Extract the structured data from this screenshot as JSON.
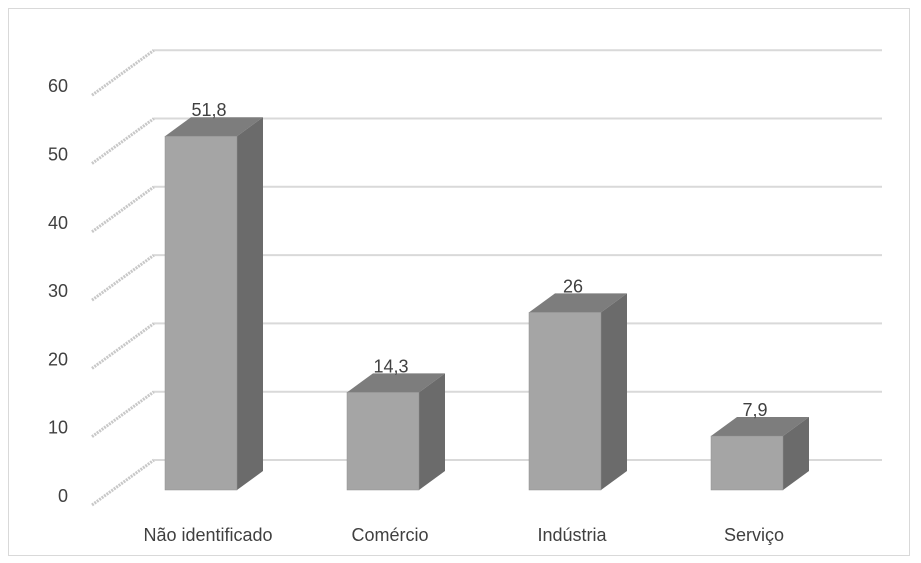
{
  "chart_data": {
    "type": "bar",
    "title": "",
    "xlabel": "",
    "ylabel": "",
    "categories": [
      "Não identificado",
      "Comércio",
      "Indústria",
      "Serviço"
    ],
    "values": [
      51.8,
      14.3,
      26,
      7.9
    ],
    "data_labels": [
      "51,8",
      "14,3",
      "26",
      "7,9"
    ],
    "y_ticks": [
      "0",
      "10",
      "20",
      "30",
      "40",
      "50",
      "60"
    ],
    "ylim": [
      0,
      60
    ],
    "grid": true,
    "legend": "none",
    "style": "3d-column",
    "colors": {
      "bar_front": "#a5a5a5",
      "bar_side": "#6b6b6b",
      "bar_top": "#7d7d7d",
      "gridline": "#d9d9d9",
      "text": "#404040"
    }
  }
}
